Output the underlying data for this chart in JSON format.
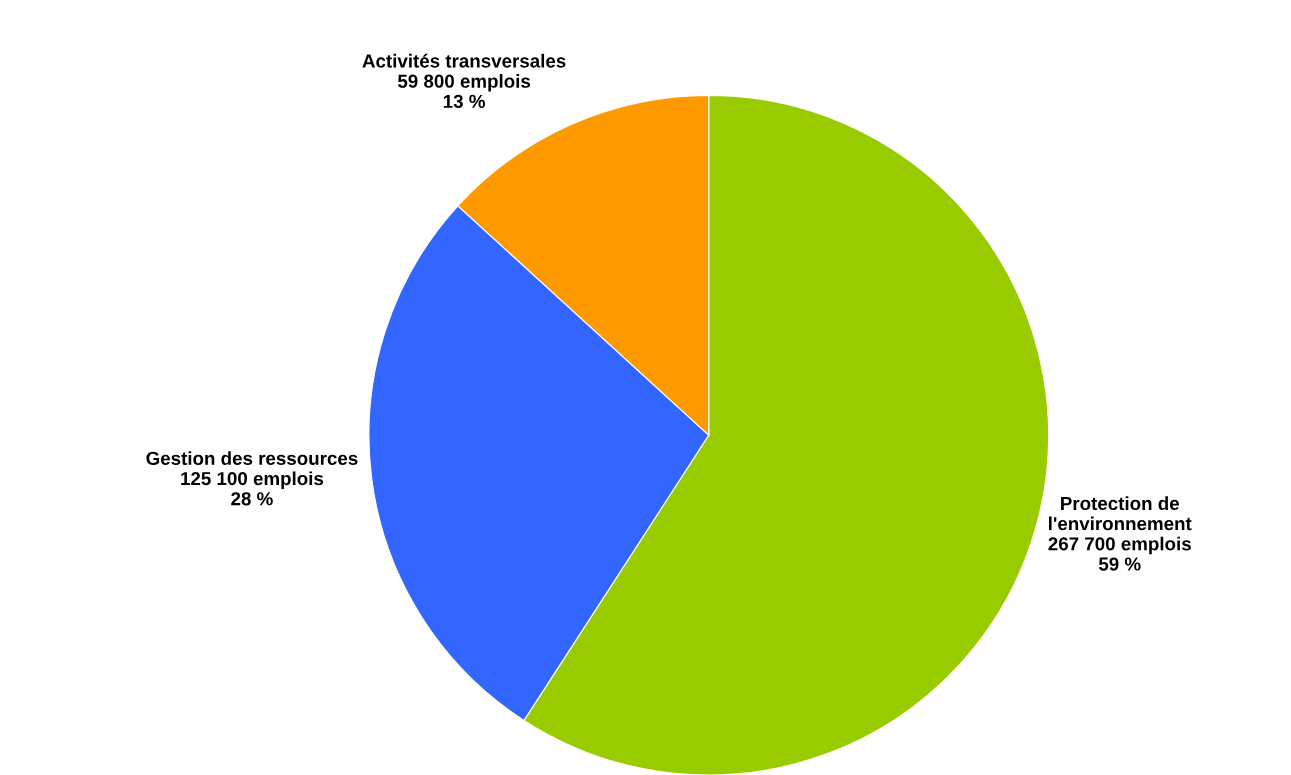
{
  "chart_data": {
    "type": "pie",
    "categories": [
      "Protection de\nl'environnement",
      "Gestion des ressources",
      "Activités transversales"
    ],
    "values": [
      267700,
      125100,
      59800
    ],
    "value_labels": [
      "267 700 emplois\n59 %",
      "125 100 emplois\n28 %",
      "59 800 emplois\n13 %"
    ],
    "colors": [
      "#99cc00",
      "#3366ff",
      "#ff9900"
    ]
  }
}
